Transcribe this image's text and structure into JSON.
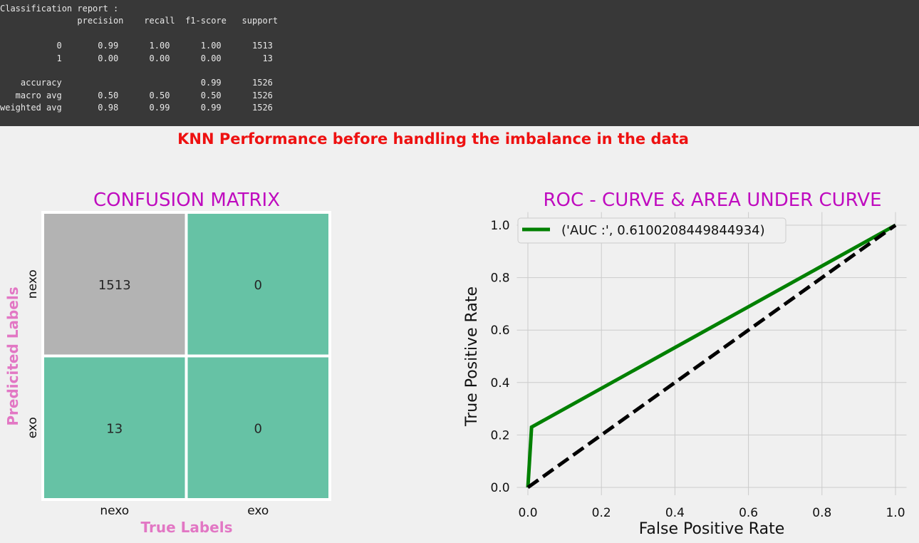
{
  "report": {
    "lines": [
      "Classification report :",
      "               precision    recall  f1-score   support",
      "",
      "           0       0.99      1.00      1.00      1513",
      "           1       0.00      0.00      0.00        13",
      "",
      "    accuracy                           0.99      1526",
      "   macro avg       0.50      0.50      0.50      1526",
      "weighted avg       0.98      0.99      0.99      1526"
    ]
  },
  "suptitle": "KNN Performance before handling the imbalance in the data",
  "colors": {
    "title": "#bf0bbf",
    "pink_label": "#e277c4",
    "cell_high": "#b3b3b3",
    "cell_low": "#66c2a5",
    "roc_line": "#008000",
    "diag_line": "#000000",
    "suptitle": "#ee1111"
  },
  "chart_data": [
    {
      "type": "heatmap",
      "title": "CONFUSION MATRIX",
      "xlabel": "True Labels",
      "ylabel": "Predicited Labels",
      "x_categories": [
        "nexo",
        "exo"
      ],
      "y_categories": [
        "nexo",
        "exo"
      ],
      "values": [
        [
          1513,
          0
        ],
        [
          13,
          0
        ]
      ]
    },
    {
      "type": "line",
      "title": "ROC - CURVE & AREA UNDER CURVE",
      "xlabel": "False Positive Rate",
      "ylabel": "True Positive Rate",
      "xlim": [
        -0.03,
        1.03
      ],
      "ylim": [
        -0.03,
        1.05
      ],
      "xticks": [
        "0.0",
        "0.2",
        "0.4",
        "0.6",
        "0.8",
        "1.0"
      ],
      "yticks": [
        "0.0",
        "0.2",
        "0.4",
        "0.6",
        "0.8",
        "1.0"
      ],
      "grid": true,
      "legend_position": "top-left",
      "series": [
        {
          "name": "('AUC :', 0.6100208449844934)",
          "x": [
            0.0,
            0.01,
            1.0
          ],
          "y": [
            0.0,
            0.23,
            1.0
          ],
          "style": "solid"
        },
        {
          "x": [
            0.0,
            1.0
          ],
          "y": [
            0.0,
            1.0
          ],
          "style": "dashed"
        }
      ]
    }
  ]
}
